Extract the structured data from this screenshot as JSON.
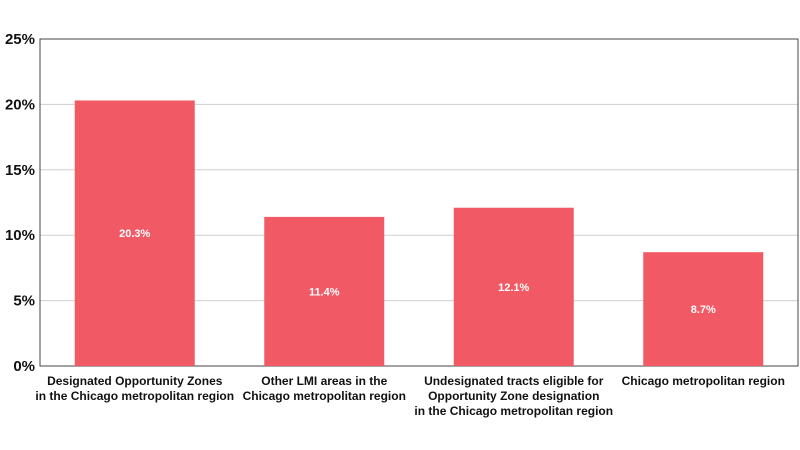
{
  "chart_data": {
    "type": "bar",
    "categories": [
      [
        "Designated Opportunity Zones",
        "in the Chicago metropolitan region"
      ],
      [
        "Other LMI areas in the",
        "Chicago metropolitan region"
      ],
      [
        "Undesignated tracts eligible for",
        "Opportunity Zone designation",
        "in the Chicago metropolitan region"
      ],
      [
        "Chicago metropolitan region"
      ]
    ],
    "values": [
      20.3,
      11.4,
      12.1,
      8.7
    ],
    "data_labels": [
      "20.3%",
      "11.4%",
      "12.1%",
      "8.7%"
    ],
    "y_ticks": [
      0,
      5,
      10,
      15,
      20,
      25
    ],
    "y_tick_labels": [
      "0%",
      "5%",
      "10%",
      "15%",
      "20%",
      "25%"
    ],
    "ylim": [
      0,
      25
    ],
    "grid": true,
    "bar_color": "#f15a65",
    "grid_color": "#cfcfcf",
    "axis_color": "#444444"
  }
}
